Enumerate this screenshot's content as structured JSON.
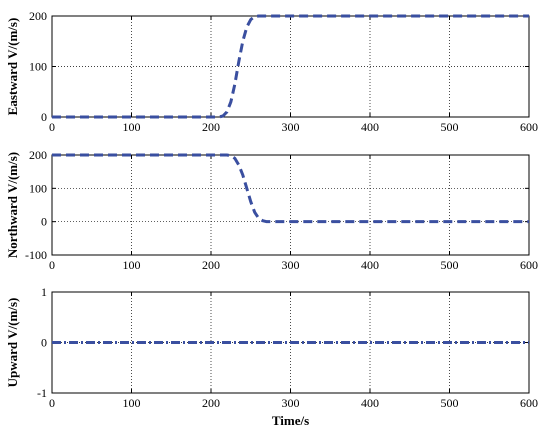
{
  "chart_data": [
    {
      "type": "line",
      "title": "",
      "xlabel": "",
      "ylabel": "Eastward V/(m/s)",
      "xlim": [
        0,
        600
      ],
      "ylim": [
        0,
        200
      ],
      "xticks": [
        "0",
        "100",
        "200",
        "300",
        "400",
        "500",
        "600"
      ],
      "yticks": [
        "0",
        "100",
        "200"
      ],
      "grid": true,
      "series": [
        {
          "color": "#3a4fa0",
          "x": [
            0,
            200,
            210,
            215,
            220,
            225,
            230,
            235,
            240,
            245,
            250,
            255,
            260,
            600
          ],
          "y": [
            0,
            0,
            0,
            2,
            10,
            30,
            65,
            110,
            150,
            178,
            193,
            199,
            200,
            200
          ]
        }
      ]
    },
    {
      "type": "line",
      "title": "",
      "xlabel": "",
      "ylabel": "Northward V/(m/s)",
      "xlim": [
        0,
        600
      ],
      "ylim": [
        -100,
        200
      ],
      "xticks": [
        "0",
        "100",
        "200",
        "300",
        "400",
        "500",
        "600"
      ],
      "yticks": [
        "-100",
        "0",
        "100",
        "200"
      ],
      "grid": true,
      "series": [
        {
          "color": "#3a4fa0",
          "x": [
            0,
            220,
            225,
            230,
            235,
            240,
            245,
            250,
            255,
            260,
            265,
            270,
            600
          ],
          "y": [
            200,
            200,
            198,
            190,
            170,
            140,
            100,
            60,
            28,
            10,
            3,
            0,
            0
          ]
        }
      ]
    },
    {
      "type": "line",
      "title": "",
      "xlabel": "Time/s",
      "ylabel": "Upward V/(m/s)",
      "xlim": [
        0,
        600
      ],
      "ylim": [
        -1,
        1
      ],
      "xticks": [
        "0",
        "100",
        "200",
        "300",
        "400",
        "500",
        "600"
      ],
      "yticks": [
        "-1",
        "0",
        "1"
      ],
      "grid": true,
      "series": [
        {
          "color": "#3a4fa0",
          "x": [
            0,
            600
          ],
          "y": [
            0,
            0
          ]
        }
      ]
    }
  ]
}
